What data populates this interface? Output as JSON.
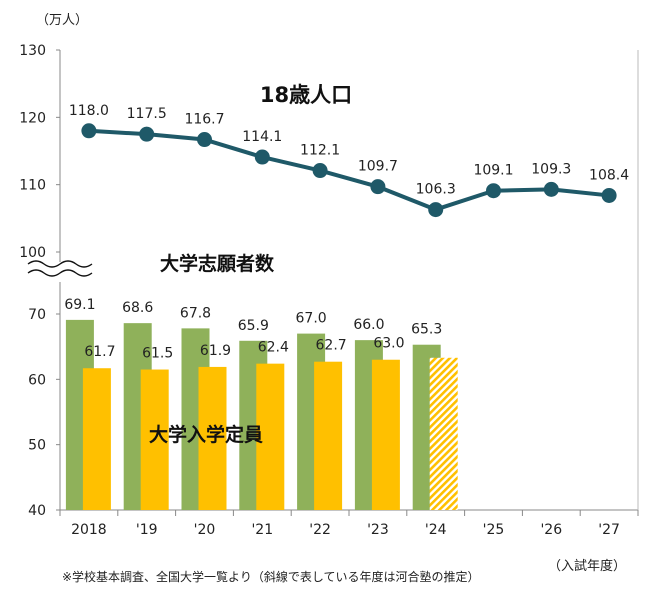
{
  "chart_data": {
    "type": "bar+line",
    "unit_label": "（万人）",
    "x_categories": [
      "2018",
      "'19",
      "'20",
      "'21",
      "'22",
      "'23",
      "'24",
      "'25",
      "'26",
      "'27"
    ],
    "x_axis_note": "（入試年度）",
    "source_note": "※学校基本調査、全国大学一覧より（斜線で表している年度は河合塾の推定）",
    "upper_axis": {
      "ticks": [
        100,
        110,
        120,
        130
      ],
      "range": [
        100,
        130
      ]
    },
    "lower_axis": {
      "ticks": [
        40,
        50,
        60,
        70
      ],
      "range": [
        40,
        70
      ]
    },
    "line_series": {
      "name": "18歳人口",
      "values": [
        118.0,
        117.5,
        116.7,
        114.1,
        112.1,
        109.7,
        106.3,
        109.1,
        109.3,
        108.4
      ],
      "labels": [
        "118.0",
        "117.5",
        "116.7",
        "114.1",
        "112.1",
        "109.7",
        "106.3",
        "109.1",
        "109.3",
        "108.4"
      ],
      "color": "#1f5968"
    },
    "bar_series": [
      {
        "name": "大学志願者数",
        "values": [
          69.1,
          68.6,
          67.8,
          65.9,
          67.0,
          66.0,
          65.3
        ],
        "labels": [
          "69.1",
          "68.6",
          "67.8",
          "65.9",
          "67.0",
          "66.0",
          "65.3"
        ],
        "color": "#8fb15a"
      },
      {
        "name": "大学入学定員",
        "values": [
          61.7,
          61.5,
          61.9,
          62.4,
          62.7,
          63.0,
          63.3
        ],
        "labels": [
          "61.7",
          "61.5",
          "61.9",
          "62.4",
          "62.7",
          "63.0",
          ""
        ],
        "color": "#ffc000",
        "hatched_from_index": 6
      }
    ],
    "grid": false
  }
}
